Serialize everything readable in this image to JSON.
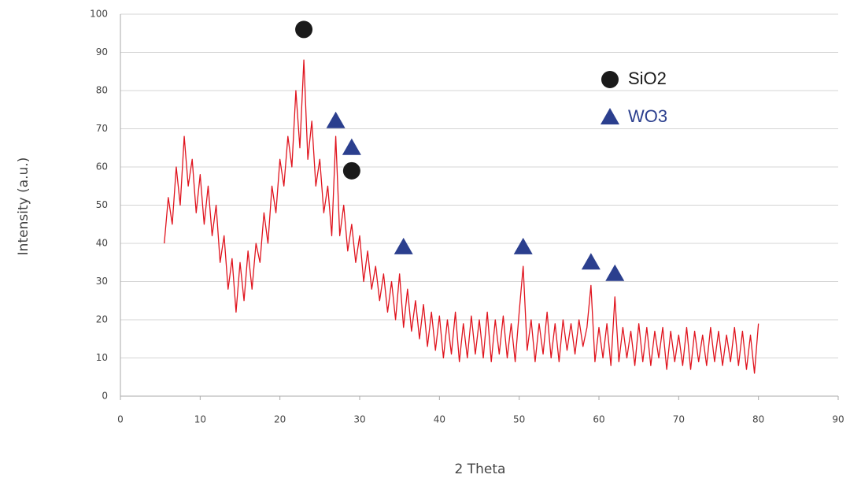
{
  "chart_data": {
    "type": "line",
    "xlabel": "2 Theta",
    "ylabel": "Intensity (a.u.)",
    "xlim": [
      0,
      90
    ],
    "xticks": [
      0,
      10,
      20,
      30,
      40,
      50,
      60,
      70,
      80,
      90
    ],
    "ylim": [
      0,
      100
    ],
    "yticks": [
      0,
      10,
      20,
      30,
      40,
      50,
      60,
      70,
      80,
      90,
      100
    ],
    "grid": true,
    "legend_position": "upper right",
    "series": [
      {
        "color": "#e0141e",
        "x": [
          5.5,
          6,
          6.5,
          7,
          7.5,
          8,
          8.5,
          9,
          9.5,
          10,
          10.5,
          11,
          11.5,
          12,
          12.5,
          13,
          13.5,
          14,
          14.5,
          15,
          15.5,
          16,
          16.5,
          17,
          17.5,
          18,
          18.5,
          19,
          19.5,
          20,
          20.5,
          21,
          21.5,
          22,
          22.5,
          23,
          23.5,
          24,
          24.5,
          25,
          25.5,
          26,
          26.5,
          27,
          27.5,
          28,
          28.5,
          29,
          29.5,
          30,
          30.5,
          31,
          31.5,
          32,
          32.5,
          33,
          33.5,
          34,
          34.5,
          35,
          35.5,
          36,
          36.5,
          37,
          37.5,
          38,
          38.5,
          39,
          39.5,
          40,
          40.5,
          41,
          41.5,
          42,
          42.5,
          43,
          43.5,
          44,
          44.5,
          45,
          45.5,
          46,
          46.5,
          47,
          47.5,
          48,
          48.5,
          49,
          49.5,
          50,
          50.5,
          51,
          51.5,
          52,
          52.5,
          53,
          53.5,
          54,
          54.5,
          55,
          55.5,
          56,
          56.5,
          57,
          57.5,
          58,
          58.5,
          59,
          59.5,
          60,
          60.5,
          61,
          61.5,
          62,
          62.5,
          63,
          63.5,
          64,
          64.5,
          65,
          65.5,
          66,
          66.5,
          67,
          67.5,
          68,
          68.5,
          69,
          69.5,
          70,
          70.5,
          71,
          71.5,
          72,
          72.5,
          73,
          73.5,
          74,
          74.5,
          75,
          75.5,
          76,
          76.5,
          77,
          77.5,
          78,
          78.5,
          79,
          79.5,
          80
        ],
        "values": [
          40,
          52,
          45,
          60,
          50,
          68,
          55,
          62,
          48,
          58,
          45,
          55,
          42,
          50,
          35,
          42,
          28,
          36,
          22,
          35,
          25,
          38,
          28,
          40,
          35,
          48,
          40,
          55,
          48,
          62,
          55,
          68,
          60,
          80,
          65,
          88,
          62,
          72,
          55,
          62,
          48,
          55,
          42,
          68,
          42,
          50,
          38,
          45,
          35,
          42,
          30,
          38,
          28,
          34,
          25,
          32,
          22,
          30,
          20,
          32,
          18,
          28,
          17,
          25,
          15,
          24,
          13,
          22,
          12,
          21,
          10,
          20,
          11,
          22,
          9,
          19,
          10,
          21,
          11,
          20,
          10,
          22,
          9,
          20,
          11,
          21,
          10,
          19,
          9,
          22,
          34,
          12,
          20,
          9,
          19,
          11,
          22,
          10,
          19,
          9,
          20,
          12,
          19,
          11,
          20,
          13,
          18,
          29,
          9,
          18,
          10,
          19,
          8,
          26,
          9,
          18,
          10,
          17,
          8,
          19,
          9,
          18,
          8,
          17,
          10,
          18,
          7,
          17,
          9,
          16,
          8,
          18,
          7,
          17,
          9,
          16,
          8,
          18,
          9,
          17,
          8,
          16,
          9,
          18,
          8,
          17,
          7,
          16,
          6,
          19
        ]
      }
    ],
    "markers": [
      {
        "name": "SiO2",
        "shape": "circle",
        "color": "#1a1a1a",
        "x": [
          23,
          29
        ],
        "values": [
          96,
          59
        ]
      },
      {
        "name": "WO3",
        "shape": "triangle",
        "color": "#2b3f8e",
        "x": [
          27,
          29,
          35.5,
          50.5,
          59,
          62
        ],
        "values": [
          72,
          65,
          39,
          39,
          35,
          32
        ]
      }
    ]
  }
}
